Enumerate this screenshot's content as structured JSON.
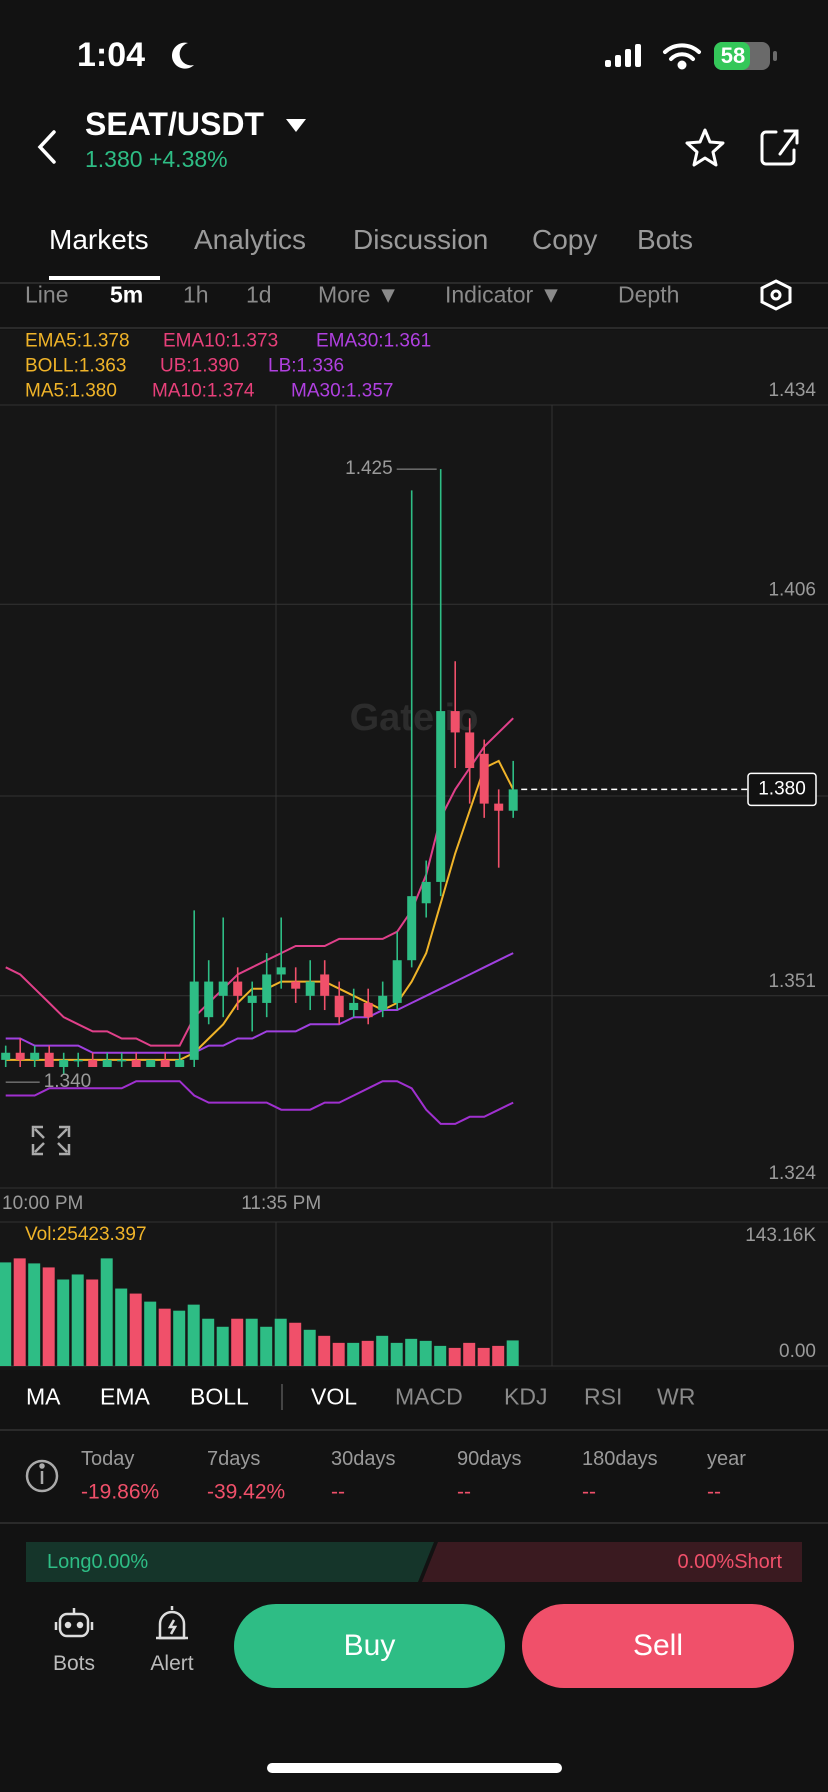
{
  "status_bar": {
    "time": "1:04",
    "battery": "58"
  },
  "header": {
    "pair": "SEAT/USDT",
    "price": "1.380",
    "change": "+4.38%"
  },
  "tabs": [
    "Markets",
    "Analytics",
    "Discussion",
    "Copy",
    "Bots"
  ],
  "intervals": [
    "Line",
    "5m",
    "1h",
    "1d",
    "More ▼",
    "Indicator ▼",
    "Depth"
  ],
  "indicator_lines": [
    [
      "EMA5:1.378",
      "EMA10:1.373",
      "EMA30:1.361"
    ],
    [
      "BOLL:1.363",
      "UB:1.390",
      "LB:1.336"
    ],
    [
      "MA5:1.380",
      "MA10:1.374",
      "MA30:1.357"
    ]
  ],
  "chart_data": [
    {
      "type": "candlestick",
      "watermark": "Gate.io",
      "categories": [
        "10:00 PM",
        null,
        null,
        null,
        null,
        null,
        null,
        null,
        null,
        null,
        null,
        null,
        null,
        null,
        null,
        null,
        null,
        null,
        null,
        "11:35 PM",
        null,
        null,
        null,
        null,
        null,
        null,
        null,
        null,
        null,
        null,
        null,
        null,
        null,
        null,
        null,
        null
      ],
      "open": [
        1.342,
        1.343,
        1.342,
        1.343,
        1.341,
        1.342,
        1.342,
        1.341,
        1.342,
        1.342,
        1.341,
        1.342,
        1.341,
        1.342,
        1.348,
        1.351,
        1.353,
        1.35,
        1.35,
        1.354,
        1.353,
        1.351,
        1.354,
        1.351,
        1.349,
        1.35,
        1.349,
        1.35,
        1.356,
        1.364,
        1.367,
        1.391,
        1.388,
        1.385,
        1.378,
        1.377
      ],
      "high": [
        1.344,
        1.345,
        1.344,
        1.344,
        1.343,
        1.343,
        1.343,
        1.343,
        1.343,
        1.343,
        1.342,
        1.343,
        1.343,
        1.363,
        1.356,
        1.362,
        1.355,
        1.353,
        1.357,
        1.362,
        1.355,
        1.356,
        1.356,
        1.353,
        1.352,
        1.352,
        1.353,
        1.36,
        1.422,
        1.37,
        1.425,
        1.398,
        1.39,
        1.387,
        1.38,
        1.384
      ],
      "low": [
        1.341,
        1.341,
        1.341,
        1.341,
        1.34,
        1.341,
        1.341,
        1.341,
        1.341,
        1.341,
        1.341,
        1.341,
        1.341,
        1.341,
        1.347,
        1.348,
        1.349,
        1.346,
        1.348,
        1.352,
        1.35,
        1.349,
        1.349,
        1.347,
        1.348,
        1.347,
        1.348,
        1.349,
        1.355,
        1.362,
        1.365,
        1.383,
        1.378,
        1.376,
        1.369,
        1.376
      ],
      "close": [
        1.343,
        1.342,
        1.343,
        1.341,
        1.342,
        1.342,
        1.341,
        1.342,
        1.342,
        1.341,
        1.342,
        1.341,
        1.342,
        1.353,
        1.353,
        1.353,
        1.351,
        1.351,
        1.354,
        1.355,
        1.352,
        1.353,
        1.351,
        1.348,
        1.35,
        1.348,
        1.351,
        1.356,
        1.365,
        1.367,
        1.391,
        1.388,
        1.383,
        1.378,
        1.377,
        1.38
      ],
      "up_color": "#2ebd85",
      "down_color": "#f0506a",
      "lines": [
        {
          "color": "#e0408a",
          "values": [
            1.355,
            1.354,
            1.352,
            1.35,
            1.348,
            1.347,
            1.346,
            1.346,
            1.345,
            1.345,
            1.344,
            1.344,
            1.344,
            1.348,
            1.35,
            1.352,
            1.354,
            1.355,
            1.356,
            1.357,
            1.358,
            1.358,
            1.358,
            1.359,
            1.359,
            1.359,
            1.359,
            1.36,
            1.363,
            1.368,
            1.376,
            1.38,
            1.383,
            1.386,
            1.388,
            1.39
          ]
        },
        {
          "color": "#a030d0",
          "values": [
            1.337,
            1.337,
            1.337,
            1.338,
            1.338,
            1.338,
            1.338,
            1.338,
            1.338,
            1.339,
            1.339,
            1.339,
            1.339,
            1.337,
            1.336,
            1.336,
            1.336,
            1.336,
            1.336,
            1.335,
            1.335,
            1.335,
            1.336,
            1.336,
            1.337,
            1.338,
            1.339,
            1.339,
            1.338,
            1.335,
            1.333,
            1.333,
            1.334,
            1.334,
            1.335,
            1.336
          ]
        },
        {
          "color": "#f0b429",
          "values": [
            1.342,
            1.342,
            1.342,
            1.342,
            1.342,
            1.342,
            1.342,
            1.342,
            1.342,
            1.342,
            1.342,
            1.342,
            1.342,
            1.343,
            1.345,
            1.347,
            1.35,
            1.352,
            1.352,
            1.353,
            1.353,
            1.353,
            1.353,
            1.352,
            1.351,
            1.35,
            1.349,
            1.35,
            1.353,
            1.357,
            1.364,
            1.371,
            1.377,
            1.383,
            1.384,
            1.38
          ]
        },
        {
          "color": "#a040e0",
          "values": [
            1.345,
            1.345,
            1.344,
            1.344,
            1.344,
            1.344,
            1.343,
            1.343,
            1.343,
            1.343,
            1.343,
            1.343,
            1.343,
            1.343,
            1.344,
            1.344,
            1.345,
            1.345,
            1.346,
            1.346,
            1.346,
            1.347,
            1.347,
            1.347,
            1.348,
            1.348,
            1.349,
            1.349,
            1.35,
            1.351,
            1.352,
            1.353,
            1.354,
            1.355,
            1.356,
            1.357
          ]
        }
      ],
      "ylim": [
        1.324,
        1.434
      ],
      "yticks": [
        1.434,
        1.406,
        1.351,
        1.324
      ],
      "high_label": 1.425,
      "low_label": {
        "value": 1.34,
        "label": "1.340"
      },
      "last_price": {
        "value": 1.38,
        "label": "1.380"
      },
      "grid": true
    },
    {
      "type": "bar",
      "title": "Vol:25423.397",
      "values": [
        103000,
        107000,
        102000,
        98000,
        86000,
        91000,
        86000,
        107000,
        77000,
        72000,
        64000,
        57000,
        55000,
        61000,
        47000,
        39000,
        47000,
        47000,
        39000,
        47000,
        43000,
        36000,
        30000,
        23000,
        23000,
        25000,
        30000,
        23000,
        27000,
        25000,
        20000,
        18000,
        23000,
        18000,
        20000,
        25423.397
      ],
      "ylim": [
        0,
        143160
      ],
      "yticks": [
        {
          "value": 143160,
          "label": "143.16K"
        },
        {
          "value": 0,
          "label": "0.00"
        }
      ],
      "grid": true
    }
  ],
  "indicator_tabs": [
    "MA",
    "EMA",
    "BOLL",
    "VOL",
    "MACD",
    "KDJ",
    "RSI",
    "WR"
  ],
  "stats": {
    "periods": [
      "Today",
      "7days",
      "30days",
      "90days",
      "180days",
      "year"
    ],
    "values": [
      "-19.86%",
      "-39.42%",
      "--",
      "--",
      "--",
      "--"
    ]
  },
  "long_short": {
    "long": "Long0.00%",
    "short": "0.00%Short"
  },
  "bottom_bar": {
    "bots": "Bots",
    "alert": "Alert",
    "buy": "Buy",
    "sell": "Sell"
  }
}
